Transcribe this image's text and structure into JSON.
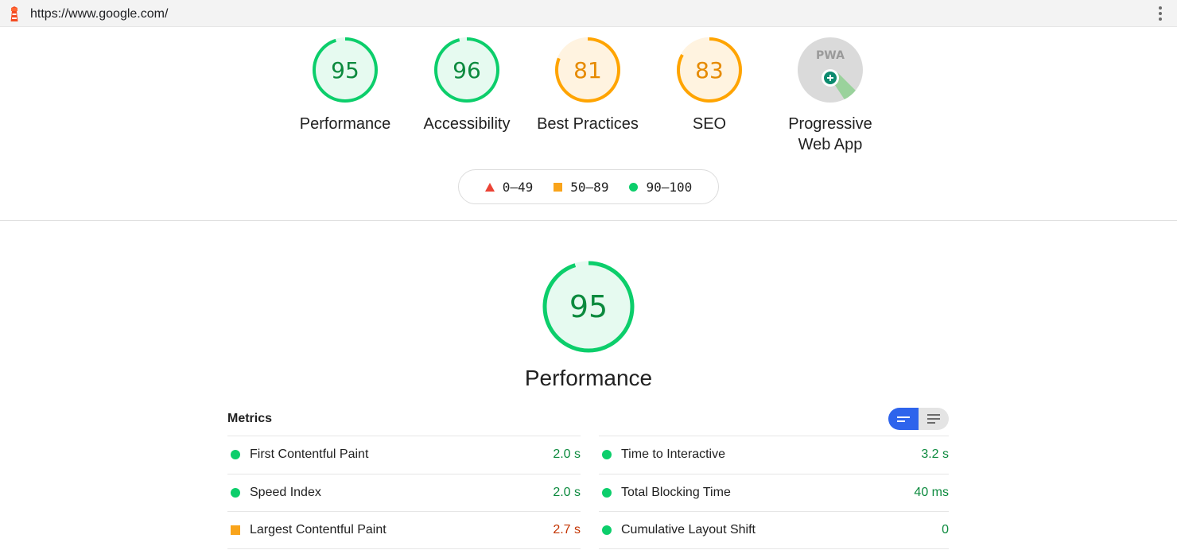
{
  "browser": {
    "url": "https://www.google.com/"
  },
  "colors": {
    "pass": "#0cce6b",
    "average": "#ffa400",
    "fail": "#ff4e42",
    "toggle_active": "#2e64ec"
  },
  "categories": [
    {
      "id": "performance",
      "score": 95,
      "label": "Performance",
      "status": "pass"
    },
    {
      "id": "accessibility",
      "score": 96,
      "label": "Accessibility",
      "status": "pass"
    },
    {
      "id": "best-practices",
      "score": 81,
      "label": "Best Practices",
      "status": "average"
    },
    {
      "id": "seo",
      "score": 83,
      "label": "SEO",
      "status": "average"
    },
    {
      "id": "pwa",
      "badge_text": "PWA",
      "label_line1": "Progressive",
      "label_line2": "Web App",
      "icon": "pwa-badge-icon"
    }
  ],
  "legend": {
    "fail": "0–49",
    "average": "50–89",
    "pass": "90–100"
  },
  "main_gauge": {
    "score": 95,
    "title": "Performance"
  },
  "metrics": {
    "heading": "Metrics",
    "left": [
      {
        "name": "First Contentful Paint",
        "value": "2.0 s",
        "status": "pass"
      },
      {
        "name": "Speed Index",
        "value": "2.0 s",
        "status": "pass"
      },
      {
        "name": "Largest Contentful Paint",
        "value": "2.7 s",
        "status": "average"
      }
    ],
    "right": [
      {
        "name": "Time to Interactive",
        "value": "3.2 s",
        "status": "pass"
      },
      {
        "name": "Total Blocking Time",
        "value": "40 ms",
        "status": "pass"
      },
      {
        "name": "Cumulative Layout Shift",
        "value": "0",
        "status": "pass"
      }
    ]
  }
}
